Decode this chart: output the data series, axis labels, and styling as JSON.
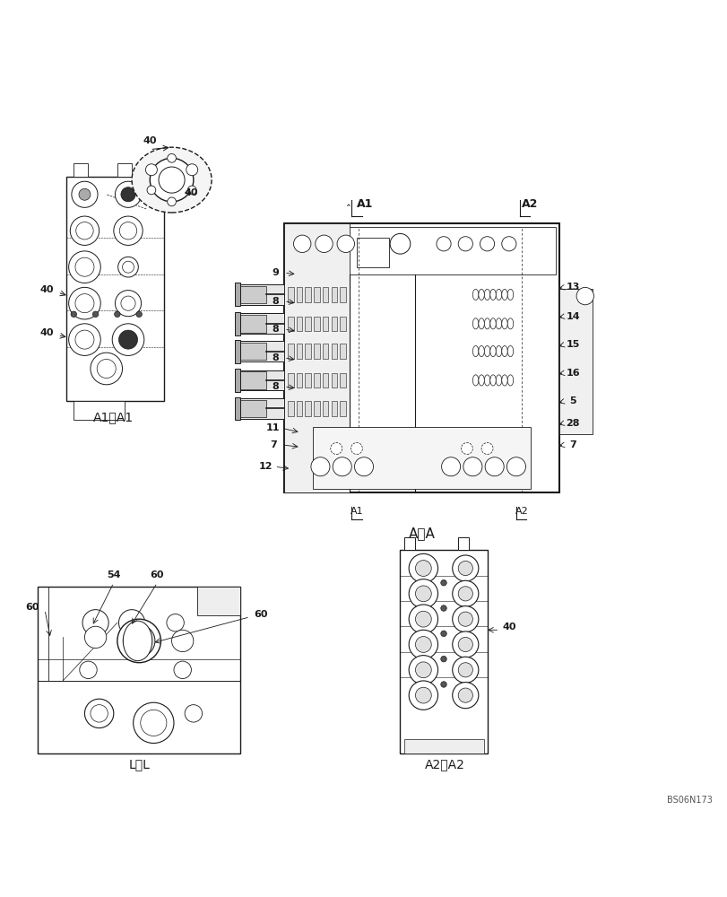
{
  "bg_color": "#ffffff",
  "fig_width": 8.12,
  "fig_height": 10.0,
  "dpi": 100,
  "line_color": "#1a1a1a",
  "annotations": {
    "main_view_label": "A～A",
    "a1a1_label": "A1～A1",
    "ll_label": "L～L",
    "a2a2_label": "A2～A2",
    "watermark": "BS06N173"
  }
}
